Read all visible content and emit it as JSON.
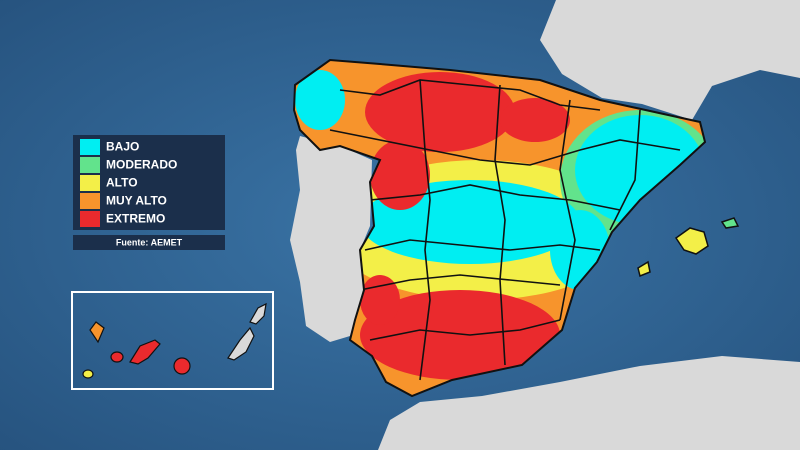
{
  "legend": {
    "items": [
      {
        "label": "BAJO",
        "color": "#00eef2"
      },
      {
        "label": "MODERADO",
        "color": "#62e38c"
      },
      {
        "label": "ALTO",
        "color": "#f3ef48"
      },
      {
        "label": "MUY ALTO",
        "color": "#f7942c"
      },
      {
        "label": "EXTREMO",
        "color": "#ea2a2d"
      }
    ]
  },
  "source": "Fuente: AEMET"
}
